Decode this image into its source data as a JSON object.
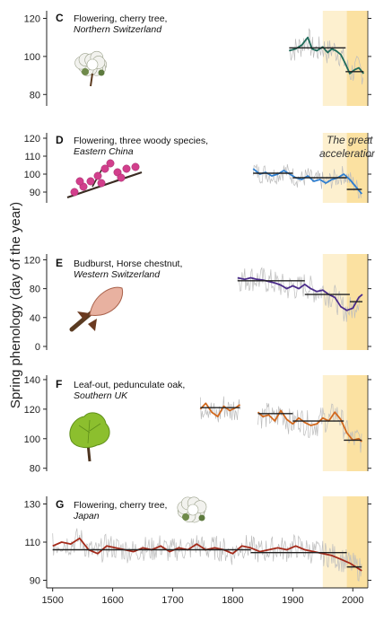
{
  "ylabel": "Spring phenology (day of the year)",
  "annotation": [
    "The great",
    "acceleration"
  ],
  "xaxis": {
    "ticks": [
      "1500",
      "1600",
      "1700",
      "1800",
      "1900",
      "2000"
    ]
  },
  "colors": {
    "shade_light": "#fdf0cf",
    "shade_dark": "#fbe1a1",
    "raw": "#bdbdbd",
    "fit": "#222222"
  },
  "chart_data": [
    {
      "type": "line",
      "label": "C",
      "title": "Flowering, cherry tree,",
      "location": "Northern Switzerland",
      "icon": "cherry-blossom-icon",
      "color": "#1f6b5a",
      "ylim": [
        74,
        124
      ],
      "yticks": [
        80,
        100,
        120
      ],
      "xlim": [
        1490,
        2025
      ],
      "series": [
        {
          "x": [
            1894,
            1905,
            1915,
            1925,
            1932,
            1940,
            1950,
            1958,
            1965,
            1972,
            1980,
            1988,
            1995,
            2003,
            2010,
            2018
          ],
          "values": [
            103,
            104,
            106,
            110,
            104,
            103,
            105,
            102,
            104,
            103,
            101,
            96,
            91,
            93,
            94,
            91
          ]
        }
      ],
      "segments": [
        {
          "x": [
            1894,
            1988
          ],
          "values": [
            104.5,
            104.5
          ]
        },
        {
          "x": [
            1988,
            2018
          ],
          "values": [
            92,
            92
          ]
        }
      ]
    },
    {
      "type": "line",
      "label": "D",
      "title": "Flowering, three woody species,",
      "location": "Eastern China",
      "icon": "flowering-branch-icon",
      "color": "#2f7fd0",
      "ylim": [
        84,
        123
      ],
      "yticks": [
        90,
        100,
        110,
        120
      ],
      "xlim": [
        1490,
        2025
      ],
      "series": [
        {
          "x": [
            1834,
            1845,
            1855,
            1865,
            1875,
            1885,
            1895,
            1905,
            1915,
            1925,
            1935,
            1945,
            1955,
            1965,
            1975,
            1985,
            1995,
            2005,
            2015
          ],
          "values": [
            103,
            100,
            101,
            99,
            100,
            102,
            100,
            98,
            97,
            99,
            96,
            97,
            95,
            97,
            98,
            100,
            97,
            93,
            89
          ]
        }
      ],
      "segments": [
        {
          "x": [
            1834,
            1900
          ],
          "values": [
            100.5,
            100.5
          ]
        },
        {
          "x": [
            1900,
            1990
          ],
          "values": [
            98,
            98
          ]
        },
        {
          "x": [
            1990,
            2015
          ],
          "values": [
            91.5,
            91.5
          ]
        }
      ]
    },
    {
      "type": "line",
      "label": "E",
      "title": "Budburst, Horse chestnut,",
      "location": "Western Switzerland",
      "icon": "horse-chestnut-bud-icon",
      "color": "#4b2b8a",
      "ylim": [
        -5,
        128
      ],
      "yticks": [
        0,
        40,
        80,
        120
      ],
      "xlim": [
        1490,
        2025
      ],
      "series": [
        {
          "x": [
            1808,
            1820,
            1830,
            1840,
            1850,
            1860,
            1870,
            1880,
            1890,
            1900,
            1910,
            1920,
            1930,
            1940,
            1950,
            1960,
            1970,
            1980,
            1990,
            2000,
            2010,
            2016
          ],
          "values": [
            95,
            93,
            95,
            93,
            92,
            90,
            88,
            85,
            80,
            84,
            80,
            86,
            80,
            76,
            78,
            72,
            68,
            55,
            50,
            53,
            68,
            72
          ]
        }
      ],
      "segments": [
        {
          "x": [
            1808,
            1920
          ],
          "values": [
            91,
            91
          ]
        },
        {
          "x": [
            1920,
            1995
          ],
          "values": [
            72,
            72
          ]
        },
        {
          "x": [
            1995,
            2016
          ],
          "values": [
            62,
            62
          ]
        }
      ]
    },
    {
      "type": "line",
      "label": "F",
      "title": "Leaf-out, pedunculate oak,",
      "location": "Southern UK",
      "icon": "oak-leaf-icon",
      "color": "#d2691e",
      "ylim": [
        78,
        143
      ],
      "yticks": [
        80,
        100,
        120,
        140
      ],
      "xlim": [
        1490,
        2025
      ],
      "series": [
        {
          "x": [
            1746,
            1755,
            1765,
            1775,
            1785,
            1795,
            1805,
            1812
          ],
          "values": [
            120,
            124,
            118,
            115,
            122,
            119,
            121,
            123
          ]
        },
        {
          "x": [
            1842,
            1850,
            1860,
            1870,
            1880,
            1890,
            1900,
            1910,
            1920,
            1930,
            1940,
            1950,
            1960,
            1970,
            1980,
            1990,
            2000,
            2010,
            2015
          ],
          "values": [
            118,
            115,
            116,
            112,
            119,
            113,
            110,
            114,
            111,
            109,
            110,
            114,
            112,
            118,
            113,
            104,
            99,
            100,
            98
          ]
        }
      ],
      "segments": [
        {
          "x": [
            1746,
            1812
          ],
          "values": [
            121,
            121
          ]
        },
        {
          "x": [
            1842,
            1900
          ],
          "values": [
            117,
            117
          ]
        },
        {
          "x": [
            1900,
            1985
          ],
          "values": [
            112,
            112
          ]
        },
        {
          "x": [
            1985,
            2015
          ],
          "values": [
            99,
            99
          ]
        }
      ]
    },
    {
      "type": "line",
      "label": "G",
      "title": "Flowering, cherry tree,",
      "location": "Japan",
      "icon": "cherry-tree-japan-icon",
      "color": "#a52a1a",
      "ylim": [
        86,
        134
      ],
      "yticks": [
        90,
        110,
        130
      ],
      "xlim": [
        1490,
        2025
      ],
      "series": [
        {
          "x": [
            1500,
            1515,
            1530,
            1545,
            1560,
            1575,
            1590,
            1605,
            1620,
            1635,
            1650,
            1665,
            1680,
            1695,
            1710,
            1725,
            1740,
            1755,
            1770,
            1785,
            1800,
            1815,
            1830,
            1845,
            1860,
            1875,
            1890,
            1905,
            1920,
            1935,
            1950,
            1965,
            1980,
            1995,
            2005,
            2015
          ],
          "values": [
            108,
            110,
            109,
            112,
            106,
            104,
            108,
            107,
            106,
            105,
            107,
            106,
            108,
            105,
            107,
            106,
            109,
            106,
            107,
            106,
            104,
            108,
            107,
            105,
            106,
            107,
            106,
            108,
            106,
            105,
            104,
            103,
            101,
            99,
            97,
            95
          ]
        }
      ],
      "segments": [
        {
          "x": [
            1500,
            1830
          ],
          "values": [
            106,
            106
          ]
        },
        {
          "x": [
            1830,
            1990
          ],
          "values": [
            104.5,
            104.5
          ]
        },
        {
          "x": [
            1990,
            2015
          ],
          "values": [
            97,
            97
          ]
        }
      ]
    }
  ]
}
